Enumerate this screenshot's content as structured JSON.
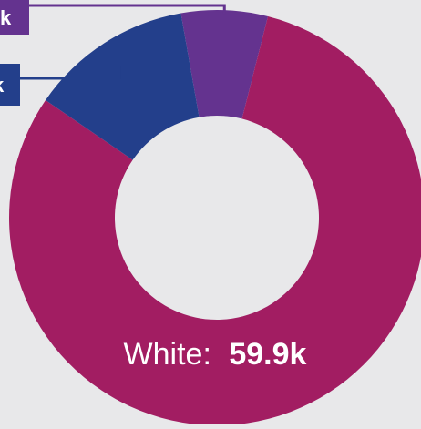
{
  "chart_data": {
    "type": "pie",
    "donut": true,
    "title": "",
    "slices": [
      {
        "label": "",
        "value": 5.0,
        "display": "k",
        "color": "#64338f"
      },
      {
        "label": "White",
        "value": 59.9,
        "display": "59.9k",
        "color": "#a21d62"
      },
      {
        "label": "",
        "value": 9.4,
        "display": "k",
        "color": "#233f8b"
      }
    ],
    "labels": {
      "white_name": "White:",
      "white_value": "59.9k",
      "callout_purple": "k",
      "callout_blue": "k"
    }
  }
}
